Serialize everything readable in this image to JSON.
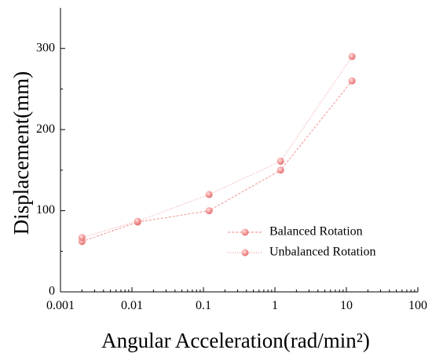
{
  "chart_data": {
    "type": "line",
    "xlabel": "Angular Acceleration(rad/min²)",
    "ylabel": "Displacement(mm)",
    "xscale": "log",
    "xlim": [
      0.001,
      100
    ],
    "ylim": [
      0,
      350
    ],
    "xticks": [
      0.001,
      0.01,
      0.1,
      1,
      10,
      100
    ],
    "xtick_labels": [
      "0.001",
      "0.01",
      "0.1",
      "1",
      "10",
      "100"
    ],
    "yticks": [
      0,
      100,
      200,
      300
    ],
    "ytick_labels": [
      "0",
      "100",
      "200",
      "300"
    ],
    "legend_position": "lower-right",
    "series": [
      {
        "name": "Balanced Rotation",
        "color": "#f08080",
        "line_style": "dash",
        "points": [
          {
            "x": 0.002,
            "y": 62
          },
          {
            "x": 0.012,
            "y": 86
          },
          {
            "x": 0.12,
            "y": 100
          },
          {
            "x": 1.2,
            "y": 150
          },
          {
            "x": 12,
            "y": 260
          }
        ]
      },
      {
        "name": "Unbalanced Rotation",
        "color": "#f08080",
        "line_style": "dot",
        "points": [
          {
            "x": 0.002,
            "y": 67
          },
          {
            "x": 0.012,
            "y": 87
          },
          {
            "x": 0.12,
            "y": 120
          },
          {
            "x": 1.2,
            "y": 161
          },
          {
            "x": 12,
            "y": 290
          }
        ]
      }
    ]
  }
}
